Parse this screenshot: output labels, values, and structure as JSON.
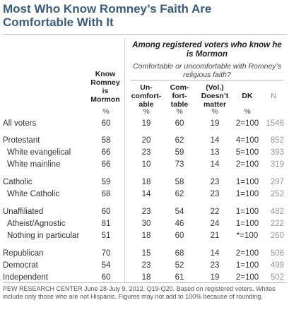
{
  "title": "Most Who Know Romney’s Faith Are Comfortable With It",
  "group_header": "Among registered voters who know he is Mormon",
  "group_subheader": "Comfortable or uncomfortable with Romney’s religious faith?",
  "columns": {
    "know": "Know Romney is Mormon",
    "uncomfortable": "Un- comfort- able",
    "comfortable": "Com- fort- table",
    "doesnt_matter": "(Vol.) Doesn’t matter",
    "dk": "DK",
    "n": "N"
  },
  "pct_symbol": "%",
  "rows": [
    {
      "label": "All voters",
      "know": "60",
      "unc": "19",
      "com": "60",
      "dm": "19",
      "dk": "2=100",
      "n": "1546",
      "indent": 0
    },
    {
      "label": "Protestant",
      "know": "58",
      "unc": "20",
      "com": "62",
      "dm": "14",
      "dk": "4=100",
      "n": "852",
      "indent": 0
    },
    {
      "label": "White evangelical",
      "know": "66",
      "unc": "23",
      "com": "59",
      "dm": "13",
      "dk": "5=100",
      "n": "393",
      "indent": 1
    },
    {
      "label": "White mainline",
      "know": "66",
      "unc": "10",
      "com": "73",
      "dm": "14",
      "dk": "2=100",
      "n": "319",
      "indent": 1
    },
    {
      "label": "Catholic",
      "know": "59",
      "unc": "18",
      "com": "58",
      "dm": "23",
      "dk": "1=100",
      "n": "297",
      "indent": 0
    },
    {
      "label": "White Catholic",
      "know": "68",
      "unc": "14",
      "com": "62",
      "dm": "23",
      "dk": "1=100",
      "n": "252",
      "indent": 1
    },
    {
      "label": "Unaffiliated",
      "know": "60",
      "unc": "23",
      "com": "54",
      "dm": "22",
      "dk": "1=100",
      "n": "482",
      "indent": 0
    },
    {
      "label": "Atheist/Agnostic",
      "know": "81",
      "unc": "30",
      "com": "46",
      "dm": "24",
      "dk": "1=100",
      "n": "222",
      "indent": 1
    },
    {
      "label": "Nothing in particular",
      "know": "51",
      "unc": "18",
      "com": "60",
      "dm": "21",
      "dk": "*=100",
      "n": "260",
      "indent": 1
    },
    {
      "label": "Republican",
      "know": "70",
      "unc": "15",
      "com": "68",
      "dm": "14",
      "dk": "2=100",
      "n": "506",
      "indent": 0
    },
    {
      "label": "Democrat",
      "know": "54",
      "unc": "23",
      "com": "52",
      "dm": "23",
      "dk": "1=100",
      "n": "499",
      "indent": 0
    },
    {
      "label": "Independent",
      "know": "60",
      "unc": "18",
      "com": "61",
      "dm": "19",
      "dk": "2=100",
      "n": "502",
      "indent": 0
    }
  ],
  "chart_data": {
    "type": "table",
    "title": "Most Who Know Romney’s Faith Are Comfortable With It",
    "columns": [
      "Know Romney is Mormon",
      "Un- comfort- able",
      "Com- fort- table",
      "(Vol.) Doesn’t matter",
      "DK",
      "N"
    ],
    "categories": [
      "All voters",
      "Protestant",
      "White evangelical",
      "White mainline",
      "Catholic",
      "White Catholic",
      "Unaffiliated",
      "Atheist/Agnostic",
      "Nothing in particular",
      "Republican",
      "Democrat",
      "Independent"
    ],
    "series": [
      {
        "name": "Know Romney is Mormon",
        "values": [
          60,
          58,
          66,
          66,
          59,
          68,
          60,
          81,
          51,
          70,
          54,
          60
        ]
      },
      {
        "name": "Un- comfort- able",
        "values": [
          19,
          20,
          23,
          10,
          18,
          14,
          23,
          30,
          18,
          15,
          23,
          18
        ]
      },
      {
        "name": "Com- fort- table",
        "values": [
          60,
          62,
          59,
          73,
          58,
          62,
          54,
          46,
          60,
          68,
          52,
          61
        ]
      },
      {
        "name": "(Vol.) Doesn’t matter",
        "values": [
          19,
          14,
          13,
          14,
          23,
          23,
          22,
          24,
          21,
          14,
          23,
          19
        ]
      },
      {
        "name": "DK",
        "values": [
          "2=100",
          "4=100",
          "5=100",
          "2=100",
          "1=100",
          "1=100",
          "1=100",
          "1=100",
          "*=100",
          "2=100",
          "1=100",
          "2=100"
        ]
      },
      {
        "name": "N",
        "values": [
          1546,
          852,
          393,
          319,
          297,
          252,
          482,
          222,
          260,
          506,
          499,
          502
        ]
      }
    ]
  },
  "note": "PEW RESEARCH CENTER June 28-July 9, 2012. Q19-Q20. Based on registered voters. Whites include only those who are not Hispanic. Figures may not add to 100% because of rounding."
}
